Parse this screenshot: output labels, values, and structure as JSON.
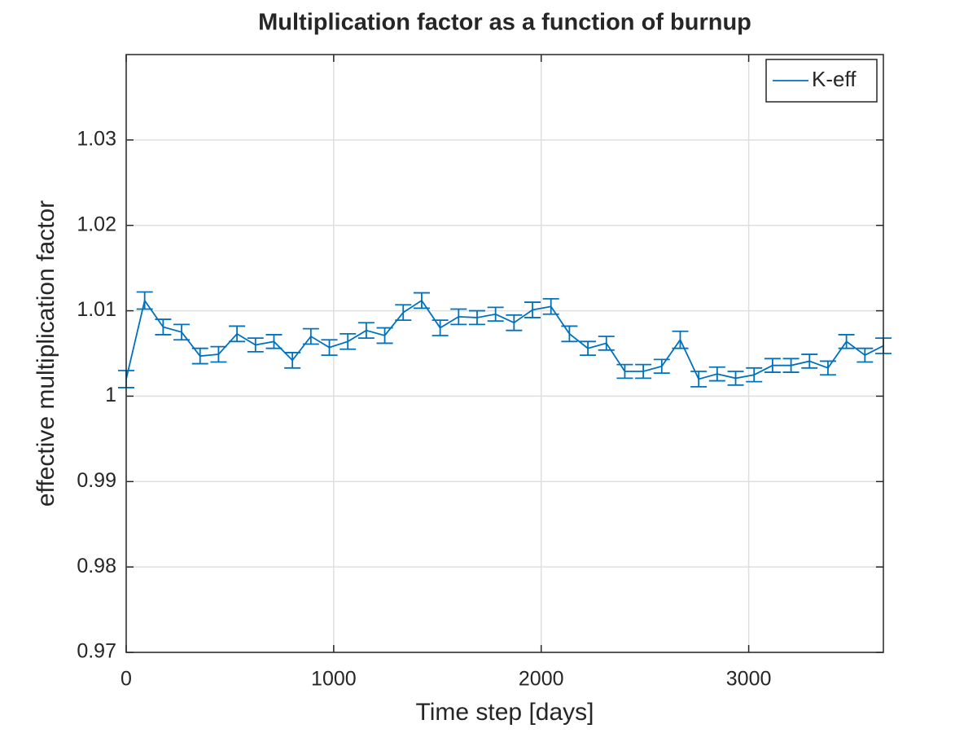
{
  "chart_data": {
    "type": "line",
    "title": "Multiplication factor as a function of burnup",
    "xlabel": "Time step [days]",
    "ylabel": "effective multiplication factor",
    "x": [
      0,
      89,
      178,
      267,
      356,
      445,
      534,
      623,
      712,
      801,
      890,
      979,
      1068,
      1157,
      1246,
      1335,
      1424,
      1513,
      1602,
      1691,
      1780,
      1869,
      1958,
      2047,
      2136,
      2225,
      2314,
      2403,
      2492,
      2581,
      2670,
      2759,
      2848,
      2937,
      3026,
      3115,
      3204,
      3293,
      3382,
      3471,
      3560,
      3649
    ],
    "series": [
      {
        "name": "K-eff",
        "color": "#0072bd",
        "values": [
          1.002,
          1.0112,
          1.0081,
          1.0075,
          1.0047,
          1.0049,
          1.0073,
          1.006,
          1.0064,
          1.0042,
          1.007,
          1.0057,
          1.0064,
          1.0077,
          1.0071,
          1.0098,
          1.0112,
          1.008,
          1.0093,
          1.0092,
          1.0096,
          1.0086,
          1.0101,
          1.0105,
          1.0073,
          1.0056,
          1.0062,
          1.0029,
          1.0029,
          1.0035,
          1.0066,
          1.002,
          1.0026,
          1.0021,
          1.0025,
          1.0036,
          1.0036,
          1.0041,
          1.0033,
          1.0064,
          1.0048,
          1.0059
        ],
        "errors": [
          0.001,
          0.001,
          0.0009,
          0.0009,
          0.0009,
          0.0009,
          0.0009,
          0.0008,
          0.0008,
          0.0009,
          0.0009,
          0.0009,
          0.0009,
          0.0009,
          0.0009,
          0.0009,
          0.0009,
          0.0009,
          0.0009,
          0.0008,
          0.0008,
          0.0009,
          0.0009,
          0.0009,
          0.0009,
          0.0008,
          0.0008,
          0.0008,
          0.0008,
          0.0008,
          0.001,
          0.0009,
          0.0008,
          0.0008,
          0.0008,
          0.0008,
          0.0008,
          0.0008,
          0.0008,
          0.0008,
          0.0008,
          0.0009
        ]
      }
    ],
    "xlim": [
      0,
      3649
    ],
    "ylim": [
      0.97,
      1.04
    ],
    "xticks": [
      0,
      1000,
      2000,
      3000
    ],
    "yticks": [
      0.97,
      0.98,
      0.99,
      1,
      1.01,
      1.02,
      1.03
    ],
    "grid": true,
    "legend": "top-right"
  }
}
